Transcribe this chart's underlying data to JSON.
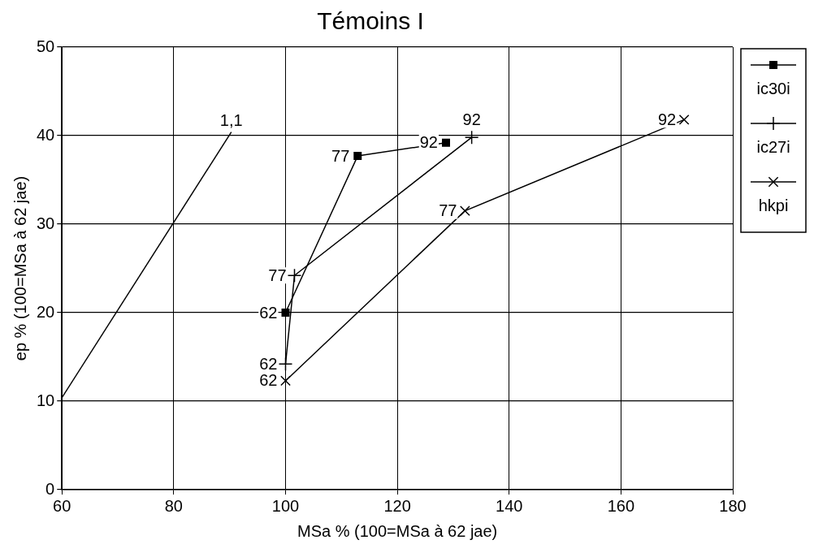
{
  "chart_data": {
    "type": "line",
    "title": "Témoins I",
    "xlabel": "MSa % (100=MSa à 62 jae)",
    "ylabel": "ep % (100=MSa à 62 jae)",
    "xlim": [
      60,
      180
    ],
    "xticks": [
      60,
      80,
      100,
      120,
      140,
      160,
      180
    ],
    "ylim": [
      0,
      50
    ],
    "yticks": [
      0,
      10,
      20,
      30,
      40,
      50
    ],
    "grid": true,
    "legend": "top right",
    "series": [
      {
        "name": "ic30i",
        "color": "#000000",
        "marker": "square",
        "x": [
          100,
          112.9,
          128.7
        ],
        "values": [
          20,
          37.7,
          39.2
        ]
      },
      {
        "name": "ic27i",
        "color": "#000000",
        "marker": "plus",
        "x": [
          100,
          101.6,
          133.3
        ],
        "values": [
          14.2,
          24.2,
          39.8
        ]
      },
      {
        "name": "hkpi",
        "color": "#000000",
        "marker": "cross",
        "x": [
          100,
          132.1,
          171.3
        ],
        "values": [
          12.3,
          31.5,
          41.8
        ]
      },
      {
        "color": "#000000",
        "marker": "none",
        "x": [
          60,
          90.3
        ],
        "values": [
          10.4,
          40.4
        ]
      }
    ],
    "annotations": [
      {
        "text": "62",
        "x": 100,
        "y": 20
      },
      {
        "text": "77",
        "x": 112.9,
        "y": 37.7
      },
      {
        "text": "92",
        "x": 128.7,
        "y": 39.2
      },
      {
        "text": "62",
        "x": 100,
        "y": 14.2
      },
      {
        "text": "77",
        "x": 101.6,
        "y": 24.2
      },
      {
        "text": "92",
        "x": 133.3,
        "y": 39.8
      },
      {
        "text": "62",
        "x": 100,
        "y": 12.3
      },
      {
        "text": "77",
        "x": 132.1,
        "y": 31.5
      },
      {
        "text": "92",
        "x": 171.3,
        "y": 41.8
      },
      {
        "text": "1,1",
        "x": 90.3,
        "y": 40.4
      }
    ]
  }
}
